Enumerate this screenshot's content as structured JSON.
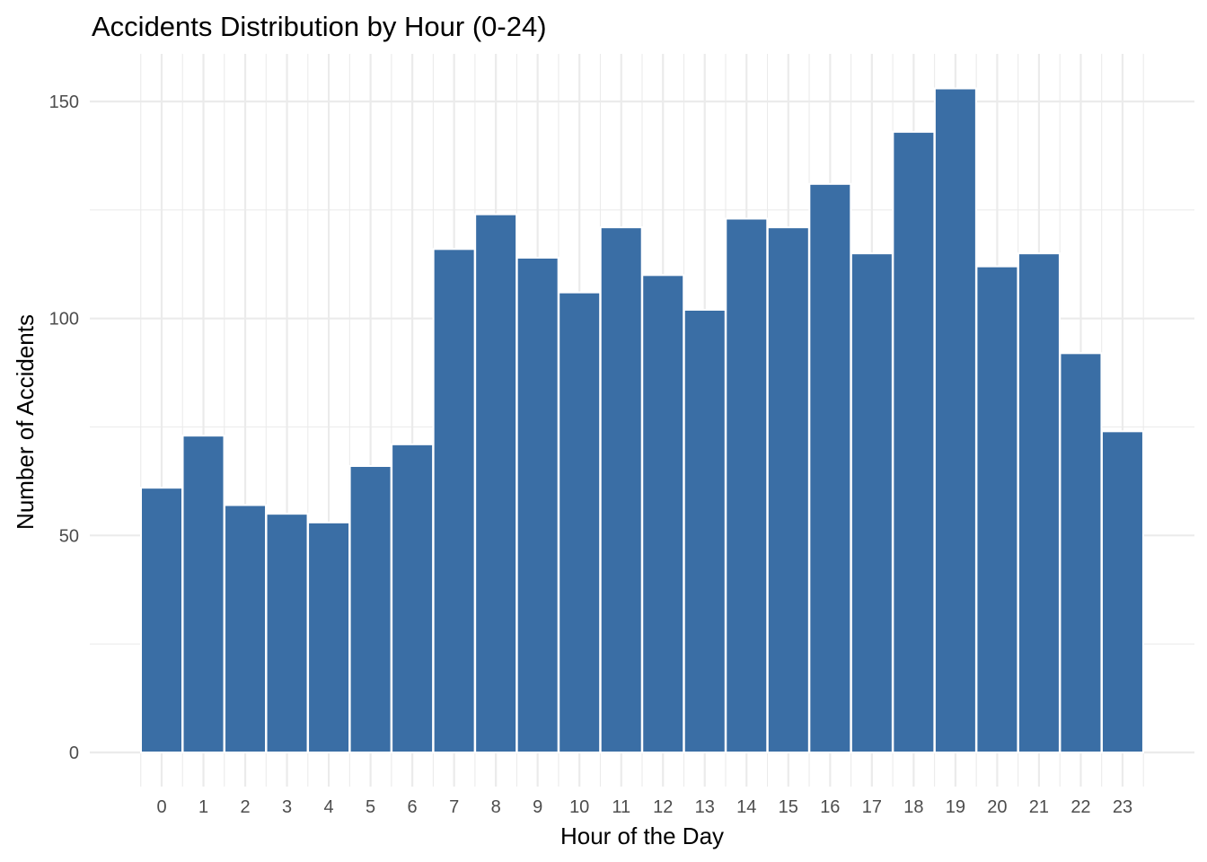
{
  "chart_data": {
    "type": "bar",
    "title": "Accidents Distribution by Hour (0-24)",
    "xlabel": "Hour of the Day",
    "ylabel": "Number of Accidents",
    "categories": [
      "0",
      "1",
      "2",
      "3",
      "4",
      "5",
      "6",
      "7",
      "8",
      "9",
      "10",
      "11",
      "12",
      "13",
      "14",
      "15",
      "16",
      "17",
      "18",
      "19",
      "20",
      "21",
      "22",
      "23"
    ],
    "values": [
      61,
      73,
      57,
      55,
      53,
      66,
      71,
      116,
      124,
      114,
      106,
      121,
      110,
      102,
      123,
      121,
      131,
      115,
      143,
      153,
      112,
      115,
      92,
      74
    ],
    "ylim": [
      0,
      160
    ],
    "yticks": [
      "0",
      "50",
      "100",
      "150"
    ],
    "grid": true,
    "legend": "none",
    "bar_color": "#3a6ea5"
  }
}
